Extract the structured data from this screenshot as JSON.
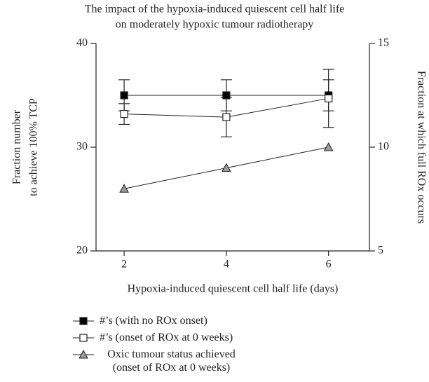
{
  "chart_data": {
    "type": "line",
    "title": [
      "The impact of the hypoxia-induced quiescent cell half life",
      "on moderately hypoxic tumour radiotherapy"
    ],
    "xlabel": "Hypoxia-induced quiescent cell half life (days)",
    "ylabel": [
      "Fraction number",
      "to achieve 100% TCP"
    ],
    "y2label": "Fraction at which full ROx occurs",
    "x": [
      2,
      4,
      6
    ],
    "xlim": [
      1.45,
      6.8
    ],
    "xticks": [
      2,
      4,
      6
    ],
    "ylim": [
      20,
      40
    ],
    "yticks": [
      20,
      30,
      40
    ],
    "y2lim": [
      5,
      15
    ],
    "y2ticks": [
      5,
      10,
      15
    ],
    "series": [
      {
        "name": "#’s (with no ROx onset)",
        "color": "#000000",
        "marker": "square-filled",
        "values": [
          35,
          35,
          35
        ],
        "errors": [
          1.5,
          1.5,
          1.5
        ]
      },
      {
        "name": "#’s (onset of ROx at 0 weeks)",
        "color": "#000000",
        "marker": "square-open",
        "values": [
          33.2,
          32.9,
          34.7
        ],
        "errors": [
          1.0,
          1.9,
          2.8
        ]
      },
      {
        "name": "Oxic tumour status achieved (onset of ROx at 0 weeks)",
        "color": "#999999",
        "marker": "triangle",
        "axis": "y2",
        "values": [
          8,
          9,
          10
        ]
      }
    ]
  }
}
